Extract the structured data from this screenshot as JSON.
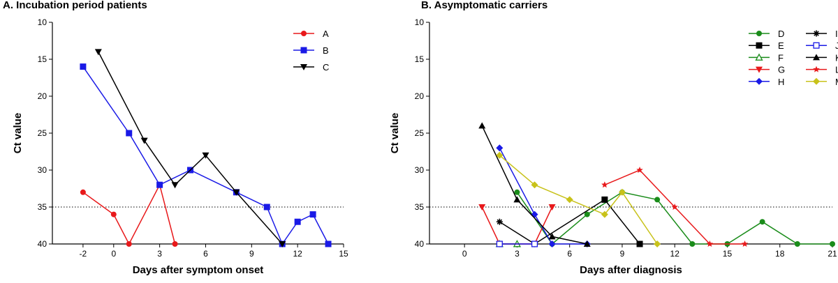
{
  "chart_data": [
    {
      "type": "line",
      "title": "A. Incubation period patients",
      "xlabel": "Days after symptom onset",
      "ylabel": "Ct value",
      "xlim": [
        -4,
        15
      ],
      "ylim": [
        10,
        40
      ],
      "y_inverted": true,
      "xticks": [
        -2,
        0,
        3,
        6,
        9,
        12,
        15
      ],
      "yticks": [
        10,
        15,
        20,
        25,
        30,
        35,
        40
      ],
      "threshold": 35,
      "legend_position": "top-right",
      "series": [
        {
          "name": "A",
          "color": "#e8191b",
          "marker": "circle",
          "x": [
            -2,
            0,
            1,
            3,
            4
          ],
          "y": [
            33,
            36,
            40,
            32,
            40
          ]
        },
        {
          "name": "B",
          "color": "#1a1ae6",
          "marker": "square",
          "x": [
            -2,
            1,
            3,
            5,
            8,
            10,
            11,
            12,
            13,
            14
          ],
          "y": [
            16,
            25,
            32,
            30,
            33,
            35,
            40,
            37,
            36,
            40
          ]
        },
        {
          "name": "C",
          "color": "#000000",
          "marker": "triangle-down",
          "x": [
            -1,
            2,
            4,
            6,
            8,
            11
          ],
          "y": [
            14,
            26,
            32,
            28,
            33,
            40
          ]
        }
      ]
    },
    {
      "type": "line",
      "title": "B. Asymptomatic carriers",
      "xlabel": "Days after diagnosis",
      "ylabel": "Ct value",
      "xlim": [
        -2,
        21
      ],
      "ylim": [
        10,
        40
      ],
      "y_inverted": true,
      "xticks": [
        0,
        3,
        6,
        9,
        12,
        15,
        18,
        21
      ],
      "yticks": [
        10,
        15,
        20,
        25,
        30,
        35,
        40
      ],
      "threshold": 35,
      "legend_position": "top-right",
      "series": [
        {
          "name": "D",
          "color": "#1a8c1a",
          "marker": "circle",
          "x": [
            3,
            5,
            7,
            9,
            11,
            13,
            15,
            17,
            19,
            21
          ],
          "y": [
            33,
            40,
            36,
            33,
            34,
            40,
            40,
            37,
            40,
            40
          ]
        },
        {
          "name": "E",
          "color": "#000000",
          "marker": "square",
          "x": [
            4,
            8,
            10
          ],
          "y": [
            40,
            34,
            40
          ]
        },
        {
          "name": "F",
          "color": "#1a8c1a",
          "marker": "triangle-up-open",
          "x": [
            2,
            3
          ],
          "y": [
            40,
            40
          ]
        },
        {
          "name": "G",
          "color": "#e8191b",
          "marker": "triangle-down",
          "x": [
            1,
            2,
            4,
            5
          ],
          "y": [
            35,
            40,
            40,
            35
          ]
        },
        {
          "name": "H",
          "color": "#1a1ae6",
          "marker": "diamond",
          "x": [
            2,
            4,
            5,
            7
          ],
          "y": [
            27,
            36,
            40,
            40
          ]
        },
        {
          "name": "I",
          "color": "#000000",
          "marker": "asterisk",
          "x": [
            2,
            4
          ],
          "y": [
            37,
            40
          ]
        },
        {
          "name": "J",
          "color": "#1a1ae6",
          "marker": "square-open",
          "x": [
            2,
            4
          ],
          "y": [
            40,
            40
          ]
        },
        {
          "name": "K",
          "color": "#000000",
          "marker": "triangle-up",
          "x": [
            1,
            3,
            5,
            7
          ],
          "y": [
            24,
            34,
            39,
            40
          ]
        },
        {
          "name": "L",
          "color": "#e8191b",
          "marker": "star",
          "x": [
            8,
            10,
            12,
            14,
            16
          ],
          "y": [
            32,
            30,
            35,
            40,
            40
          ]
        },
        {
          "name": "M",
          "color": "#c8c21a",
          "marker": "diamond",
          "x": [
            2,
            4,
            6,
            8,
            9,
            11
          ],
          "y": [
            28,
            32,
            34,
            36,
            33,
            40
          ]
        }
      ]
    }
  ]
}
